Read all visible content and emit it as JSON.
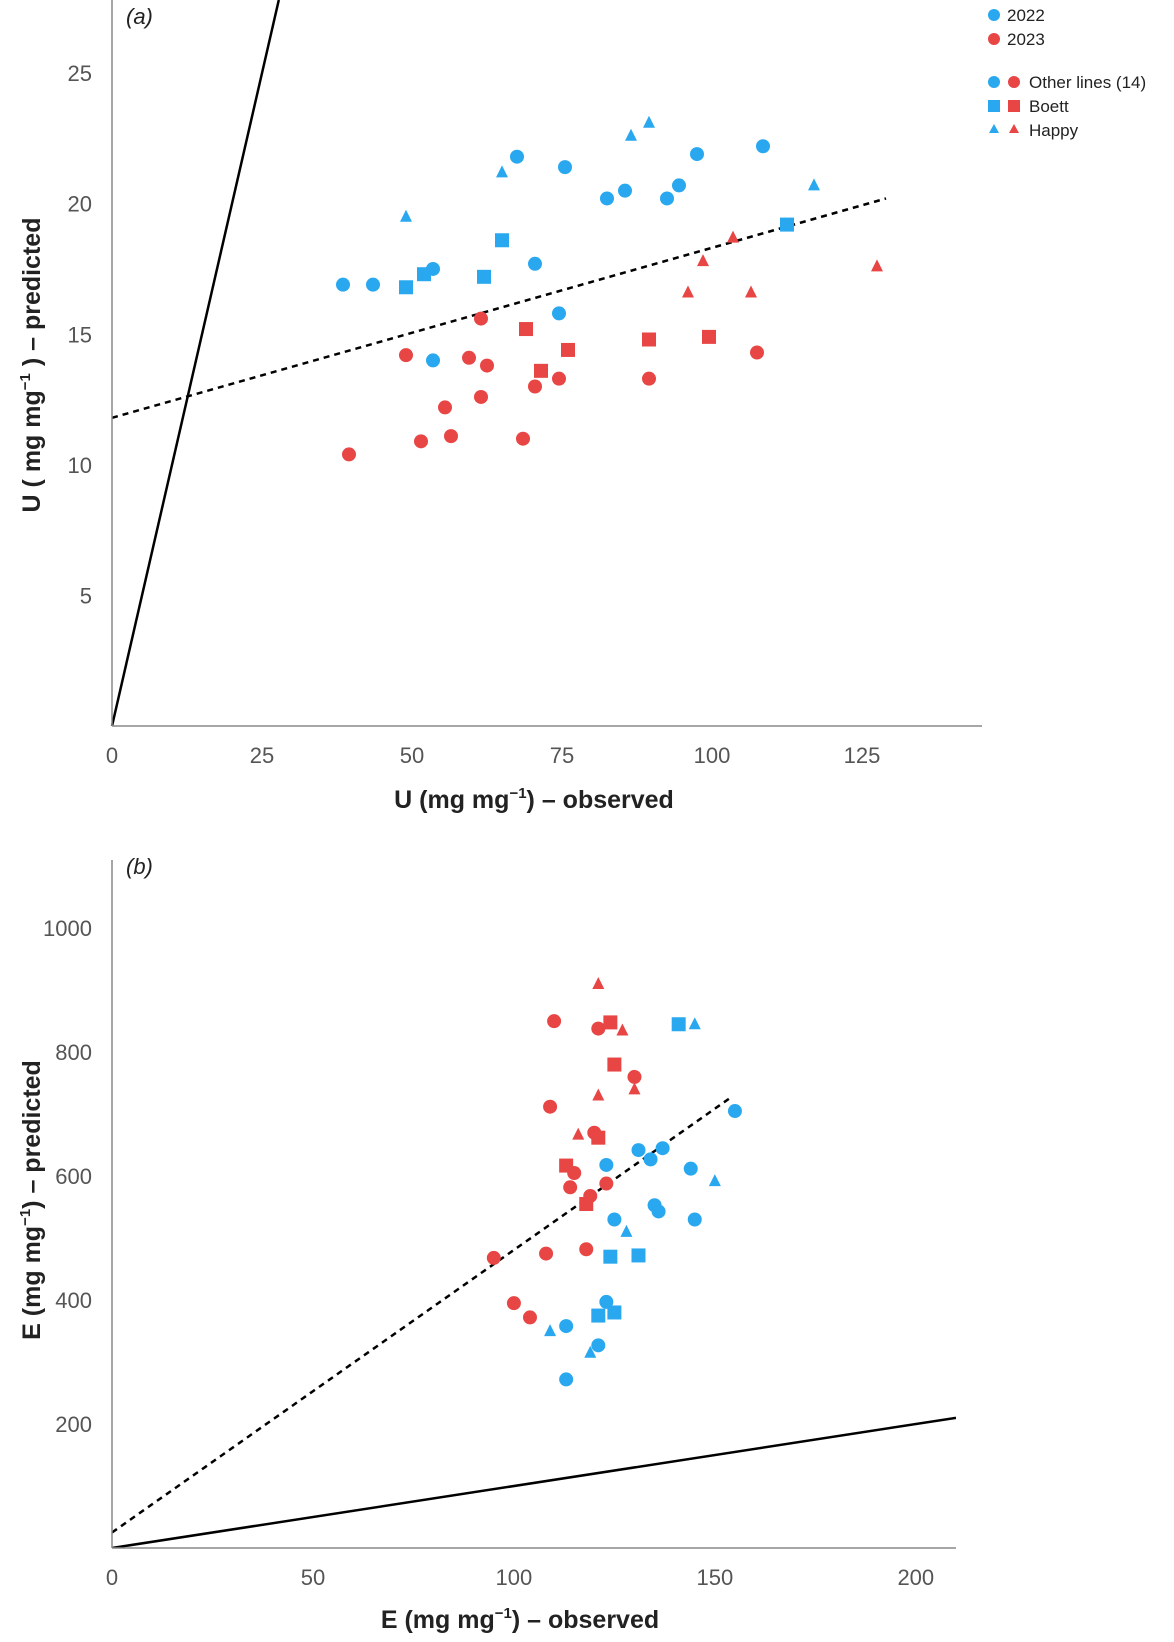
{
  "colors": {
    "year2022": "#29a8f0",
    "year2023": "#e84545",
    "identity_line": "#000000",
    "fit_line": "#000000"
  },
  "legend": {
    "years": [
      {
        "label": "2022",
        "color": "#29a8f0"
      },
      {
        "label": "2023",
        "color": "#e84545"
      }
    ],
    "groups": [
      {
        "label": "Other lines (14)",
        "marker": "circle"
      },
      {
        "label": "Boett",
        "marker": "square"
      },
      {
        "label": "Happy",
        "marker": "triangle"
      }
    ]
  },
  "chart_data": [
    {
      "type": "scatter",
      "panel_label": "(a)",
      "xlabel": {
        "main": "U (mg mg",
        "sup": "−1",
        "post": ") – observed"
      },
      "ylabel": {
        "main": "U ( mg mg",
        "sup": "−1",
        "post": " ) – predicted"
      },
      "xlim": [
        0,
        145
      ],
      "ylim": [
        0,
        27.8
      ],
      "xticks": [
        "0",
        "25",
        "50",
        "75",
        "100",
        "125"
      ],
      "yticks": [
        "5",
        "10",
        "15",
        "20",
        "25"
      ],
      "identity_line": {
        "x": [
          0,
          27.8
        ],
        "y": [
          0,
          27.8
        ]
      },
      "fit_line": {
        "x": [
          0,
          129
        ],
        "y": [
          11.8,
          20.2
        ]
      },
      "series": [
        {
          "name": "2022",
          "group": "Other lines (14)",
          "color": "#29a8f0",
          "marker": "circle",
          "points": [
            [
              38.5,
              16.9
            ],
            [
              43.5,
              16.9
            ],
            [
              53.5,
              17.5
            ],
            [
              53.5,
              14.0
            ],
            [
              67.5,
              21.8
            ],
            [
              70.5,
              17.7
            ],
            [
              74.5,
              15.8
            ],
            [
              75.5,
              21.4
            ],
            [
              82.5,
              20.2
            ],
            [
              85.5,
              20.5
            ],
            [
              92.5,
              20.2
            ],
            [
              94.5,
              20.7
            ],
            [
              97.5,
              21.9
            ],
            [
              108.5,
              22.2
            ]
          ]
        },
        {
          "name": "2022",
          "group": "Boett",
          "color": "#29a8f0",
          "marker": "square",
          "points": [
            [
              49,
              16.8
            ],
            [
              52,
              17.3
            ],
            [
              62,
              17.2
            ],
            [
              65,
              18.6
            ],
            [
              112.5,
              19.2
            ]
          ]
        },
        {
          "name": "2022",
          "group": "Happy",
          "color": "#29a8f0",
          "marker": "triangle",
          "points": [
            [
              49,
              19.5
            ],
            [
              65,
              21.2
            ],
            [
              86.5,
              22.6
            ],
            [
              89.5,
              23.1
            ],
            [
              117,
              20.7
            ]
          ]
        },
        {
          "name": "2023",
          "group": "Other lines (14)",
          "color": "#e84545",
          "marker": "circle",
          "points": [
            [
              39.5,
              10.4
            ],
            [
              49,
              14.2
            ],
            [
              51.5,
              10.9
            ],
            [
              55.5,
              12.2
            ],
            [
              56.5,
              11.1
            ],
            [
              59.5,
              14.1
            ],
            [
              61.5,
              12.6
            ],
            [
              61.5,
              15.6
            ],
            [
              62.5,
              13.8
            ],
            [
              68.5,
              11.0
            ],
            [
              70.5,
              13.0
            ],
            [
              74.5,
              13.3
            ],
            [
              89.5,
              13.3
            ],
            [
              107.5,
              14.3
            ]
          ]
        },
        {
          "name": "2023",
          "group": "Boett",
          "color": "#e84545",
          "marker": "square",
          "points": [
            [
              69,
              15.2
            ],
            [
              71.5,
              13.6
            ],
            [
              76,
              14.4
            ],
            [
              89.5,
              14.8
            ],
            [
              99.5,
              14.9
            ]
          ]
        },
        {
          "name": "2023",
          "group": "Happy",
          "color": "#e84545",
          "marker": "triangle",
          "points": [
            [
              96,
              16.6
            ],
            [
              98.5,
              17.8
            ],
            [
              103.5,
              18.7
            ],
            [
              106.5,
              16.6
            ],
            [
              127.5,
              17.6
            ]
          ]
        }
      ]
    },
    {
      "type": "scatter",
      "panel_label": "(b)",
      "xlabel": {
        "main": "E (mg mg",
        "sup": "−1",
        "post": ") – observed"
      },
      "ylabel": {
        "main": "E (mg mg",
        "sup": "−1",
        "post": ") – predicted"
      },
      "xlim": [
        0,
        210
      ],
      "ylim": [
        0,
        1110
      ],
      "xticks": [
        "0",
        "50",
        "100",
        "150",
        "200"
      ],
      "yticks": [
        "200",
        "400",
        "600",
        "800",
        "1000"
      ],
      "identity_line": {
        "x": [
          0,
          210
        ],
        "y": [
          0,
          210
        ]
      },
      "fit_line": {
        "x": [
          0,
          154
        ],
        "y": [
          25,
          727
        ]
      },
      "series": [
        {
          "name": "2022",
          "group": "Other lines (14)",
          "color": "#29a8f0",
          "marker": "circle",
          "points": [
            [
              113,
              272
            ],
            [
              113,
              358
            ],
            [
              121,
              327
            ],
            [
              123,
              397
            ],
            [
              123,
              618
            ],
            [
              125,
              530
            ],
            [
              131,
              642
            ],
            [
              134,
              627
            ],
            [
              135,
              553
            ],
            [
              136,
              543
            ],
            [
              137,
              645
            ],
            [
              144,
              612
            ],
            [
              145,
              530
            ],
            [
              155,
              705
            ]
          ]
        },
        {
          "name": "2022",
          "group": "Boett",
          "color": "#29a8f0",
          "marker": "square",
          "points": [
            [
              121,
              375
            ],
            [
              124,
              470
            ],
            [
              125,
              380
            ],
            [
              131,
              472
            ],
            [
              141,
              845
            ]
          ]
        },
        {
          "name": "2022",
          "group": "Happy",
          "color": "#29a8f0",
          "marker": "triangle",
          "points": [
            [
              109,
              350
            ],
            [
              119,
              315
            ],
            [
              128,
              510
            ],
            [
              145,
              845
            ],
            [
              150,
              592
            ]
          ]
        },
        {
          "name": "2023",
          "group": "Other lines (14)",
          "color": "#e84545",
          "marker": "circle",
          "points": [
            [
              95,
              468
            ],
            [
              100,
              395
            ],
            [
              104,
              372
            ],
            [
              108,
              475
            ],
            [
              109,
              712
            ],
            [
              110,
              850
            ],
            [
              114,
              582
            ],
            [
              115,
              605
            ],
            [
              118,
              482
            ],
            [
              119,
              568
            ],
            [
              120,
              670
            ],
            [
              121,
              838
            ],
            [
              123,
              588
            ],
            [
              130,
              760
            ]
          ]
        },
        {
          "name": "2023",
          "group": "Boett",
          "color": "#e84545",
          "marker": "square",
          "points": [
            [
              113,
              617
            ],
            [
              118,
              555
            ],
            [
              121,
              662
            ],
            [
              124,
              848
            ],
            [
              125,
              780
            ]
          ]
        },
        {
          "name": "2023",
          "group": "Happy",
          "color": "#e84545",
          "marker": "triangle",
          "points": [
            [
              116,
              667
            ],
            [
              121,
              910
            ],
            [
              121,
              730
            ],
            [
              127,
              835
            ],
            [
              130,
              740
            ]
          ]
        }
      ]
    }
  ]
}
